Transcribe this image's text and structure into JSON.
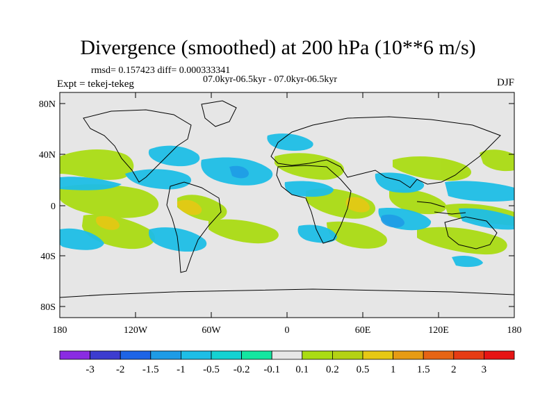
{
  "title": "Divergence (smoothed) at 200 hPa (10**6 m/s)",
  "stats": "rmsd= 0.157423 diff= 0.000333341",
  "period": "07.0kyr-06.5kyr - 07.0kyr-06.5kyr",
  "experiment": "Expt = tekej-tekeg",
  "season": "DJF",
  "map": {
    "lat_labels": [
      "80N",
      "40N",
      "0",
      "40S",
      "80S"
    ],
    "lon_labels": [
      "180",
      "120W",
      "60W",
      "0",
      "60E",
      "120E",
      "180"
    ],
    "background_color": "#e6e6e6"
  },
  "colorbar": {
    "colors": [
      "#8a2be2",
      "#3c3ccf",
      "#1e64e6",
      "#1e9be6",
      "#1ebee6",
      "#14d2d2",
      "#14e6a0",
      "#e6e6e6",
      "#aadc14",
      "#b4d214",
      "#e6c814",
      "#e69b14",
      "#e66414",
      "#e63c14",
      "#e61414"
    ],
    "labels": [
      "-3",
      "-2",
      "-1.5",
      "-1",
      "-0.5",
      "-0.2",
      "-0.1",
      "0.1",
      "0.2",
      "0.5",
      "1",
      "1.5",
      "2",
      "3"
    ]
  }
}
